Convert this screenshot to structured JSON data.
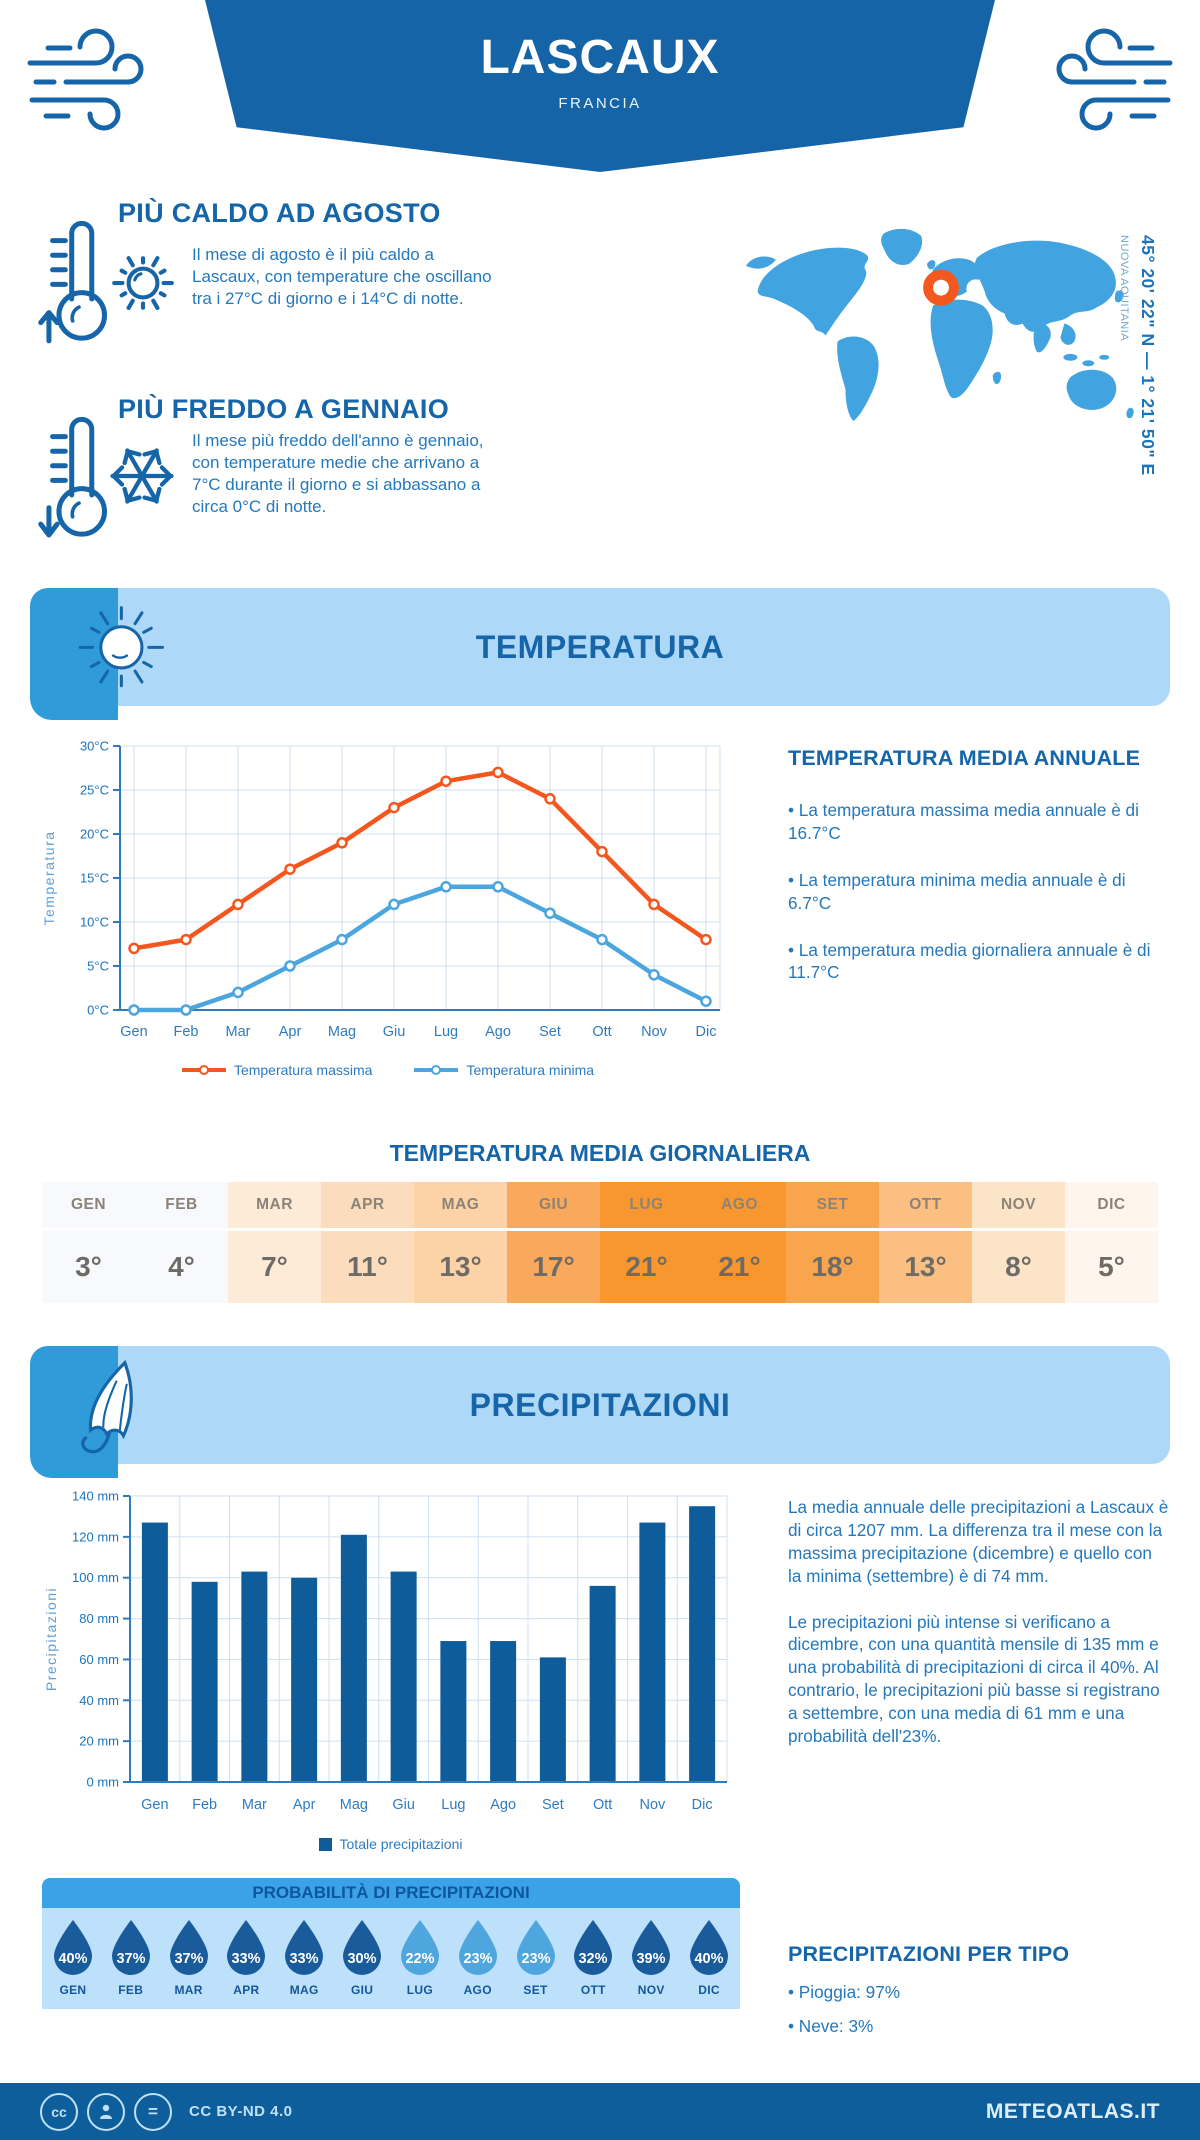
{
  "header": {
    "title": "LASCAUX",
    "subtitle": "FRANCIA"
  },
  "location": {
    "coordinates": "45° 20' 22\" N — 1° 21' 50\" E",
    "region": "NUOVA AQUITANIA"
  },
  "highlights": [
    {
      "title": "PIÙ CALDO AD AGOSTO",
      "text": "Il mese di agosto è il più caldo a Lascaux, con temperature che oscillano tra i 27°C di giorno e i 14°C di notte."
    },
    {
      "title": "PIÙ FREDDO A GENNAIO",
      "text": "Il mese più freddo dell'anno è gennaio, con temperature medie che arrivano a 7°C durante il giorno e si abbassano a circa 0°C di notte."
    }
  ],
  "sections": {
    "temperature": "TEMPERATURA",
    "precipitation": "PRECIPITAZIONI"
  },
  "chart_data": [
    {
      "type": "line",
      "categories": [
        "Gen",
        "Feb",
        "Mar",
        "Apr",
        "Mag",
        "Giu",
        "Lug",
        "Ago",
        "Set",
        "Ott",
        "Nov",
        "Dic"
      ],
      "series": [
        {
          "name": "Temperatura massima",
          "color": "#F4571D",
          "values": [
            7,
            8,
            12,
            16,
            19,
            23,
            26,
            27,
            24,
            18,
            12,
            8
          ]
        },
        {
          "name": "Temperatura minima",
          "color": "#4BA5DF",
          "values": [
            0,
            0,
            2,
            5,
            8,
            12,
            14,
            14,
            11,
            8,
            4,
            1
          ]
        }
      ],
      "ylabel": "Temperatura",
      "ylim": [
        0,
        30
      ],
      "ytick_step": 5,
      "ytick_labels": [
        "0°C",
        "5°C",
        "10°C",
        "15°C",
        "20°C",
        "25°C",
        "30°C"
      ],
      "grid": true,
      "legend_position": "bottom"
    },
    {
      "type": "bar",
      "categories": [
        "Gen",
        "Feb",
        "Mar",
        "Apr",
        "Mag",
        "Giu",
        "Lug",
        "Ago",
        "Set",
        "Ott",
        "Nov",
        "Dic"
      ],
      "values": [
        127,
        98,
        103,
        100,
        121,
        103,
        69,
        69,
        61,
        96,
        127,
        135
      ],
      "series_name": "Totale precipitazioni",
      "color": "#0E5C99",
      "ylabel": "Precipitazioni",
      "ylim": [
        0,
        140
      ],
      "ytick_step": 20,
      "ytick_labels": [
        "0 mm",
        "20 mm",
        "40 mm",
        "60 mm",
        "80 mm",
        "100 mm",
        "120 mm",
        "140 mm"
      ],
      "grid": true,
      "legend_position": "bottom"
    }
  ],
  "annual_summary": {
    "title": "TEMPERATURA MEDIA ANNUALE",
    "bullets": [
      "• La temperatura massima media annuale è di 16.7°C",
      "• La temperatura minima media annuale è di 6.7°C",
      "• La temperatura media giornaliera annuale è di 11.7°C"
    ]
  },
  "daily_table": {
    "title": "TEMPERATURA MEDIA GIORNALIERA",
    "months": [
      "GEN",
      "FEB",
      "MAR",
      "APR",
      "MAG",
      "GIU",
      "LUG",
      "AGO",
      "SET",
      "OTT",
      "NOV",
      "DIC"
    ],
    "values": [
      "3°",
      "4°",
      "7°",
      "11°",
      "13°",
      "17°",
      "21°",
      "21°",
      "18°",
      "13°",
      "8°",
      "5°"
    ],
    "cell_colors": [
      "#F7F9FD",
      "#F7F9FD",
      "#FDEBD8",
      "#FBDDBD",
      "#FCD2A6",
      "#F9A85C",
      "#F8962F",
      "#F8962F",
      "#F9A54E",
      "#FBBF82",
      "#FCE4C8",
      "#FEF5EC"
    ]
  },
  "precip_text": {
    "paragraphs": [
      "La media annuale delle precipitazioni a Lascaux è di circa 1207 mm. La differenza tra il mese con la massima precipitazione (dicembre) e quello con la minima (settembre) è di 74 mm.",
      "Le precipitazioni più intense si verificano a dicembre, con una quantità mensile di 135 mm e una probabilità di precipitazioni di circa il 40%. Al contrario, le precipitazioni più basse si registrano a settembre, con una media di 61 mm e una probabilità dell'23%."
    ]
  },
  "precip_prob": {
    "title": "PROBABILITÀ DI PRECIPITAZIONI",
    "months": [
      "GEN",
      "FEB",
      "MAR",
      "APR",
      "MAG",
      "GIU",
      "LUG",
      "AGO",
      "SET",
      "OTT",
      "NOV",
      "DIC"
    ],
    "values": [
      "40%",
      "37%",
      "37%",
      "33%",
      "33%",
      "30%",
      "22%",
      "23%",
      "23%",
      "32%",
      "39%",
      "40%"
    ],
    "drop_colors": [
      "#1A5C9B",
      "#1A5C9B",
      "#1A5C9B",
      "#1A5C9B",
      "#1A5C9B",
      "#1A5C9B",
      "#4FA5DE",
      "#4FA5DE",
      "#4FA5DE",
      "#1A5C9B",
      "#1A5C9B",
      "#1A5C9B"
    ]
  },
  "precip_type": {
    "title": "PRECIPITAZIONI PER TIPO",
    "bullets": [
      "• Pioggia: 97%",
      "• Neve: 3%"
    ]
  },
  "footer": {
    "license": "CC BY-ND 4.0",
    "brand": "METEOATLAS.IT"
  },
  "colors": {
    "banner": "#1564A7",
    "band_bg": "#AED8F7",
    "band_icon_box": "#2F9BD8",
    "map": "#41A3E0",
    "marker": "#F4581F",
    "grid": "#CFE0F0",
    "axis": "#2E7CBF"
  }
}
